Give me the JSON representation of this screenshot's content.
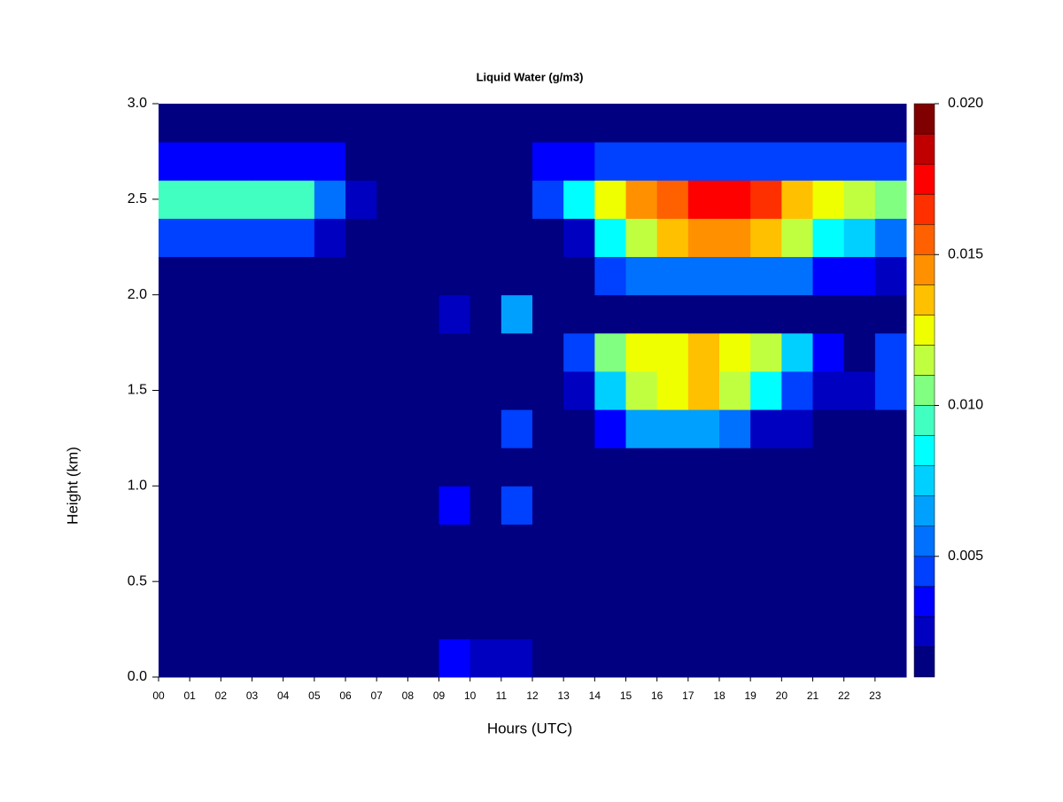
{
  "chart_data": {
    "type": "heatmap",
    "title": "Liquid Water (g/m3)",
    "xlabel": "Hours (UTC)",
    "ylabel": "Height (km)",
    "x": [
      0,
      1,
      2,
      3,
      4,
      5,
      6,
      7,
      8,
      9,
      10,
      11,
      12,
      13,
      14,
      15,
      16,
      17,
      18,
      19,
      20,
      21,
      22,
      23,
      24
    ],
    "y": [
      0,
      0.2,
      0.4,
      0.6,
      0.8,
      1.0,
      1.2,
      1.4,
      1.6,
      1.8,
      2.0,
      2.2,
      2.4,
      2.6,
      2.8,
      3.0
    ],
    "z": [
      [
        0.001,
        0.001,
        0.001,
        0.001,
        0.001,
        0.001,
        0.001,
        0.001,
        0.001,
        0.003,
        0.002,
        0.002,
        0.001,
        0.001,
        0.001,
        0.001,
        0.001,
        0.001,
        0.001,
        0.001,
        0.001,
        0.001,
        0.001,
        0.001
      ],
      [
        0.001,
        0.001,
        0.001,
        0.001,
        0.001,
        0.001,
        0.001,
        0.001,
        0.001,
        0.001,
        0.001,
        0.001,
        0.001,
        0.001,
        0.001,
        0.001,
        0.001,
        0.001,
        0.001,
        0.001,
        0.001,
        0.001,
        0.001,
        0.001
      ],
      [
        0.001,
        0.001,
        0.001,
        0.001,
        0.001,
        0.001,
        0.001,
        0.001,
        0.001,
        0.001,
        0.001,
        0.001,
        0.001,
        0.001,
        0.001,
        0.001,
        0.001,
        0.001,
        0.001,
        0.001,
        0.001,
        0.001,
        0.001,
        0.001
      ],
      [
        0.001,
        0.001,
        0.001,
        0.001,
        0.001,
        0.001,
        0.001,
        0.001,
        0.001,
        0.001,
        0.001,
        0.001,
        0.001,
        0.001,
        0.001,
        0.001,
        0.001,
        0.001,
        0.001,
        0.001,
        0.001,
        0.001,
        0.001,
        0.001
      ],
      [
        0.001,
        0.001,
        0.001,
        0.001,
        0.001,
        0.001,
        0.001,
        0.001,
        0.001,
        0.003,
        0.001,
        0.004,
        0.001,
        0.001,
        0.001,
        0.001,
        0.001,
        0.001,
        0.001,
        0.001,
        0.001,
        0.001,
        0.001,
        0.001
      ],
      [
        0.001,
        0.001,
        0.001,
        0.001,
        0.001,
        0.001,
        0.001,
        0.001,
        0.001,
        0.001,
        0.001,
        0.001,
        0.001,
        0.001,
        0.001,
        0.001,
        0.001,
        0.001,
        0.001,
        0.001,
        0.001,
        0.001,
        0.001,
        0.001
      ],
      [
        0.001,
        0.001,
        0.001,
        0.001,
        0.001,
        0.001,
        0.001,
        0.001,
        0.001,
        0.001,
        0.001,
        0.004,
        0.001,
        0.001,
        0.003,
        0.006,
        0.006,
        0.006,
        0.005,
        0.002,
        0.002,
        0.001,
        0.001,
        0.001
      ],
      [
        0.001,
        0.001,
        0.001,
        0.001,
        0.001,
        0.001,
        0.001,
        0.001,
        0.001,
        0.001,
        0.001,
        0.001,
        0.001,
        0.002,
        0.007,
        0.011,
        0.012,
        0.013,
        0.011,
        0.008,
        0.004,
        0.002,
        0.002,
        0.004
      ],
      [
        0.001,
        0.001,
        0.001,
        0.001,
        0.001,
        0.001,
        0.001,
        0.001,
        0.001,
        0.001,
        0.001,
        0.001,
        0.001,
        0.004,
        0.01,
        0.012,
        0.012,
        0.013,
        0.012,
        0.011,
        0.007,
        0.003,
        0.001,
        0.004
      ],
      [
        0.001,
        0.001,
        0.001,
        0.001,
        0.001,
        0.001,
        0.001,
        0.001,
        0.001,
        0.002,
        0.001,
        0.006,
        0.001,
        0.001,
        0.001,
        0.001,
        0.001,
        0.001,
        0.001,
        0.001,
        0.001,
        0.001,
        0.001,
        0.001
      ],
      [
        0.001,
        0.001,
        0.001,
        0.001,
        0.001,
        0.001,
        0.001,
        0.001,
        0.001,
        0.001,
        0.001,
        0.001,
        0.001,
        0.001,
        0.004,
        0.005,
        0.005,
        0.005,
        0.005,
        0.005,
        0.005,
        0.003,
        0.003,
        0.002
      ],
      [
        0.004,
        0.004,
        0.004,
        0.004,
        0.004,
        0.002,
        0.001,
        0.001,
        0.001,
        0.001,
        0.001,
        0.001,
        0.001,
        0.002,
        0.008,
        0.011,
        0.013,
        0.014,
        0.014,
        0.013,
        0.011,
        0.008,
        0.007,
        0.005
      ],
      [
        0.009,
        0.009,
        0.009,
        0.009,
        0.009,
        0.005,
        0.002,
        0.001,
        0.001,
        0.001,
        0.001,
        0.001,
        0.004,
        0.008,
        0.012,
        0.014,
        0.015,
        0.017,
        0.017,
        0.016,
        0.013,
        0.012,
        0.011,
        0.01
      ],
      [
        0.003,
        0.003,
        0.003,
        0.003,
        0.003,
        0.003,
        0.001,
        0.001,
        0.001,
        0.001,
        0.001,
        0.001,
        0.003,
        0.003,
        0.004,
        0.004,
        0.004,
        0.004,
        0.004,
        0.004,
        0.004,
        0.004,
        0.004,
        0.004
      ],
      [
        0.001,
        0.001,
        0.001,
        0.001,
        0.001,
        0.001,
        0.001,
        0.001,
        0.001,
        0.001,
        0.001,
        0.001,
        0.001,
        0.001,
        0.001,
        0.001,
        0.001,
        0.001,
        0.001,
        0.001,
        0.001,
        0.001,
        0.001,
        0.001
      ]
    ],
    "xlim": [
      0,
      24
    ],
    "ylim": [
      0,
      3
    ],
    "xticks": [
      {
        "value": 0,
        "label": "00"
      },
      {
        "value": 1,
        "label": "01"
      },
      {
        "value": 2,
        "label": "02"
      },
      {
        "value": 3,
        "label": "03"
      },
      {
        "value": 4,
        "label": "04"
      },
      {
        "value": 5,
        "label": "05"
      },
      {
        "value": 6,
        "label": "06"
      },
      {
        "value": 7,
        "label": "07"
      },
      {
        "value": 8,
        "label": "08"
      },
      {
        "value": 9,
        "label": "09"
      },
      10,
      11,
      12,
      13,
      14,
      15,
      16,
      17,
      18,
      19,
      20,
      21,
      22,
      23
    ],
    "yticks": [
      {
        "value": 0,
        "label": "0.0"
      },
      0.5,
      {
        "value": 1,
        "label": "1.0"
      },
      1.5,
      {
        "value": 2,
        "label": "2.0"
      },
      2.5,
      {
        "value": 3,
        "label": "3.0"
      }
    ],
    "colorbar": {
      "lim": [
        0.001,
        0.02
      ],
      "ticks": [
        0.005,
        {
          "value": 0.01,
          "label": "0.010"
        },
        0.015,
        {
          "value": 0.02,
          "label": "0.020"
        }
      ],
      "colors": [
        "#000080",
        "#0000c0",
        "#0000ff",
        "#0040ff",
        "#0070ff",
        "#00a0ff",
        "#00d0ff",
        "#00ffff",
        "#40ffc0",
        "#80ff80",
        "#c0ff40",
        "#f0ff00",
        "#ffc000",
        "#ff9000",
        "#ff6000",
        "#ff3000",
        "#ff0000",
        "#c00000",
        "#800000"
      ]
    }
  }
}
